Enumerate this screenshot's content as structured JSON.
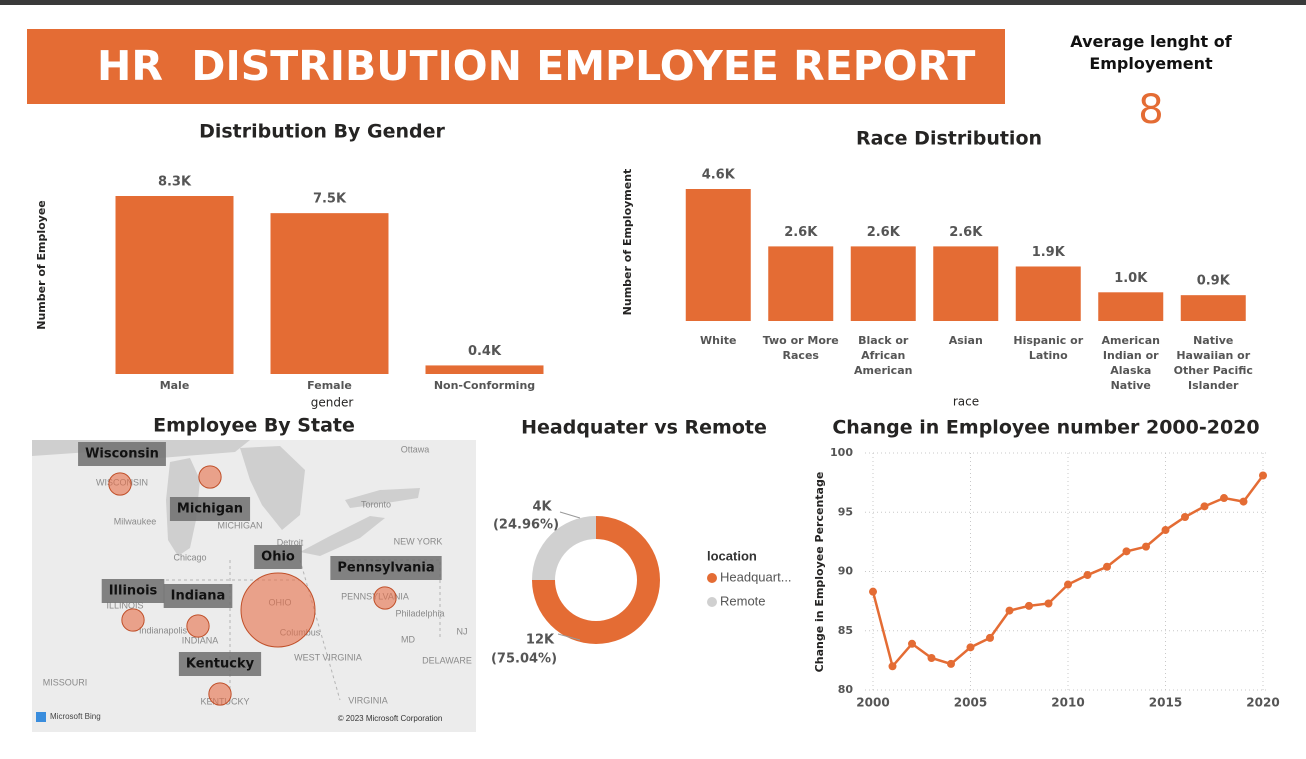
{
  "header": {
    "title": "HR  DISTRIBUTION EMPLOYEE REPORT"
  },
  "kpi": {
    "label": "Average lenght of Employement",
    "value": 8
  },
  "chart_data": [
    {
      "type": "bar",
      "title": "Distribution By Gender",
      "x_label": "gender",
      "y_label": "Number of Employee",
      "categories": [
        "Male",
        "Female",
        "Non-Conforming"
      ],
      "values": [
        8300,
        7500,
        400
      ],
      "value_labels": [
        "8.3K",
        "7.5K",
        "0.4K"
      ],
      "color": "#e46c34"
    },
    {
      "type": "bar",
      "title": "Race Distribution",
      "x_label": "race",
      "y_label": "Number of Employment",
      "categories": [
        "White",
        "Two or More Races",
        "Black or African American",
        "Asian",
        "Hispanic or Latino",
        "American Indian or Alaska Native",
        "Native Hawaiian or Other Pacific Islander"
      ],
      "values": [
        4600,
        2600,
        2600,
        2600,
        1900,
        1000,
        900
      ],
      "value_labels": [
        "4.6K",
        "2.6K",
        "2.6K",
        "2.6K",
        "1.9K",
        "1.0K",
        "0.9K"
      ],
      "color": "#e46c34"
    },
    {
      "type": "map",
      "title": "Employee By State",
      "categories": [
        "Wisconsin",
        "Michigan",
        "Ohio",
        "Pennsylvania",
        "Illinois",
        "Indiana",
        "Kentucky"
      ],
      "values": [
        1000,
        1000,
        11000,
        1000,
        1000,
        1000,
        1000
      ],
      "color": "#e8704a",
      "places": [
        "Ottawa",
        "Toronto",
        "WISCONSIN",
        "Milwaukee",
        "MICHIGAN",
        "Detroit",
        "NEW YORK",
        "Chicago",
        "OHIO",
        "PENNSYLVANIA",
        "ILLINOIS",
        "Indianapolis",
        "INDIANA",
        "Columbus",
        "Philadelphia",
        "MD",
        "NJ",
        "WEST VIRGINIA",
        "DELAWARE",
        "MISSOURI",
        "KENTUCKY",
        "VIRGINIA"
      ],
      "attribution": "Microsoft Bing",
      "copyright": "© 2023 Microsoft Corporation"
    },
    {
      "type": "donut",
      "title": "Headquater vs Remote",
      "legend_title": "location",
      "categories": [
        "Headquart...",
        "Remote"
      ],
      "values": [
        12000,
        4000
      ],
      "value_labels": [
        "12K",
        "4K"
      ],
      "percent_labels": [
        "(75.04%)",
        "(24.96%)"
      ],
      "colors": [
        "#e46c34",
        "#d0d0d0"
      ]
    },
    {
      "type": "line",
      "title": "Change in Employee number 2000-2020",
      "y_label": "Change in Employee Percentage",
      "x": [
        2000,
        2001,
        2002,
        2003,
        2004,
        2005,
        2006,
        2007,
        2008,
        2009,
        2010,
        2011,
        2012,
        2013,
        2014,
        2015,
        2016,
        2017,
        2018,
        2019,
        2020
      ],
      "values": [
        88.3,
        82.0,
        83.9,
        82.7,
        82.2,
        83.6,
        84.4,
        86.7,
        87.1,
        87.3,
        88.9,
        89.7,
        90.4,
        91.7,
        92.1,
        93.5,
        94.6,
        95.5,
        96.2,
        95.9,
        98.1
      ],
      "color": "#e46c34",
      "xlim": [
        2000,
        2020
      ],
      "xticks": [
        2000,
        2005,
        2010,
        2015,
        2020
      ],
      "ylim": [
        80,
        100
      ],
      "yticks": [
        80,
        85,
        90,
        95,
        100
      ],
      "grid": true
    }
  ]
}
